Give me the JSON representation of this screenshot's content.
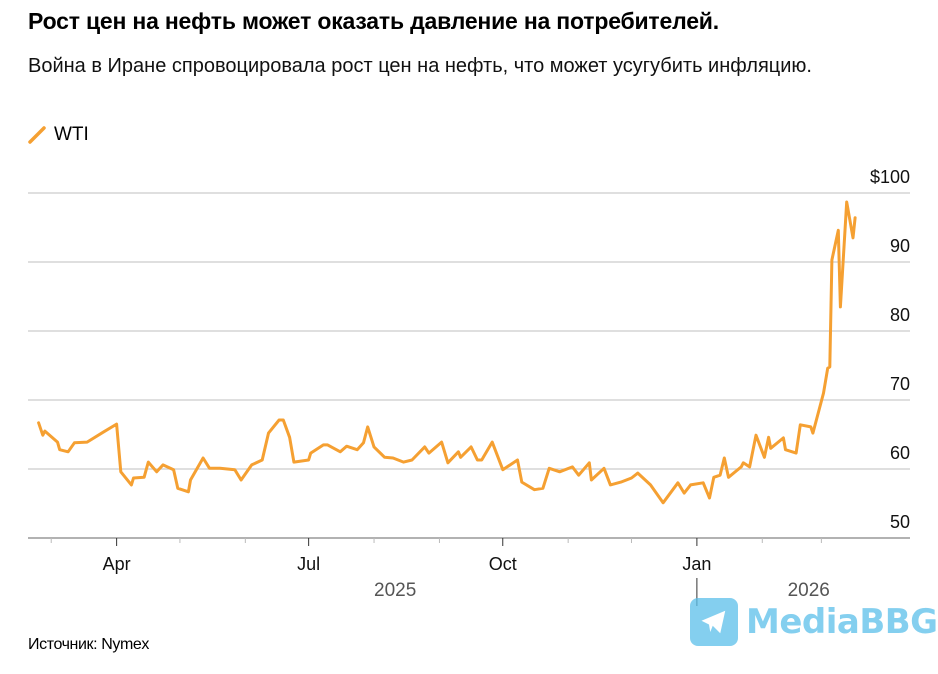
{
  "header": {
    "title": "Рост цен на нефть может оказать давление на потребителей.",
    "subtitle": "Война в Иране спровоцировала рост цен на нефть, что может усугубить инфляцию."
  },
  "source": "Источник: Nymex",
  "watermark": "MediaBBG",
  "colors": {
    "series": "#f5a032",
    "grid": "#cccccc",
    "axis": "#999999"
  },
  "chart_data": {
    "type": "line",
    "title": "Рост цен на нефть может оказать давление на потребителей.",
    "xlabel": "",
    "ylabel": "",
    "x_units": "days since 2025-01-01",
    "xlim": [
      48,
      466
    ],
    "ylim": [
      50,
      100
    ],
    "grid": true,
    "legend": "top-left",
    "y_ticks": [
      {
        "value": 100,
        "label": "$100"
      },
      {
        "value": 90,
        "label": "90"
      },
      {
        "value": 80,
        "label": "80"
      },
      {
        "value": 70,
        "label": "70"
      },
      {
        "value": 60,
        "label": "60"
      },
      {
        "value": 50,
        "label": "50"
      }
    ],
    "x_ticks": [
      {
        "value": 90,
        "label": "Apr"
      },
      {
        "value": 181,
        "label": "Jul"
      },
      {
        "value": 273,
        "label": "Oct"
      },
      {
        "value": 365,
        "label": "Jan"
      }
    ],
    "x_minor_ticks": [
      59,
      120,
      151,
      212,
      243,
      304,
      334,
      396,
      424
    ],
    "year_labels": [
      {
        "value": 222,
        "label": "2025"
      },
      {
        "value": 418,
        "label": "2026"
      }
    ],
    "year_divider": 365,
    "series": [
      {
        "name": "WTI",
        "x": [
          53,
          55,
          56,
          62,
          63,
          67,
          70,
          76,
          84,
          90,
          92,
          97,
          98,
          103,
          105,
          109,
          112,
          117,
          119,
          124,
          125,
          131,
          134,
          139,
          146,
          149,
          154,
          159,
          162,
          167,
          169,
          172,
          174,
          181,
          182,
          188,
          190,
          196,
          199,
          204,
          207,
          209,
          212,
          217,
          221,
          226,
          230,
          236,
          238,
          244,
          247,
          252,
          253,
          258,
          261,
          263,
          268,
          273,
          280,
          282,
          288,
          292,
          295,
          300,
          306,
          309,
          314,
          315,
          321,
          324,
          329,
          334,
          337,
          343,
          349,
          356,
          359,
          362,
          368,
          371,
          373,
          376,
          378,
          380,
          386,
          387,
          390,
          393,
          397,
          399,
          400,
          406,
          407,
          412,
          414,
          419,
          420,
          425,
          427,
          428,
          429,
          432,
          433,
          436,
          439,
          440
        ],
        "values": [
          66.7,
          64.9,
          65.5,
          63.9,
          62.8,
          62.5,
          63.8,
          63.9,
          65.4,
          66.5,
          59.6,
          57.7,
          58.7,
          58.8,
          61,
          59.6,
          60.6,
          59.9,
          57.2,
          56.7,
          58.4,
          61.6,
          60.1,
          60.1,
          59.9,
          58.4,
          60.6,
          61.3,
          65.2,
          67.1,
          67.1,
          64.6,
          61,
          61.3,
          62.3,
          63.5,
          63.5,
          62.5,
          63.3,
          62.8,
          63.8,
          66.1,
          63.2,
          61.7,
          61.6,
          61,
          61.3,
          63.2,
          62.3,
          63.9,
          60.9,
          62.5,
          61.7,
          63.2,
          61.3,
          61.3,
          63.9,
          59.9,
          61.3,
          58.1,
          57,
          57.2,
          60.1,
          59.6,
          60.3,
          59.1,
          60.9,
          58.4,
          60.1,
          57.7,
          58.1,
          58.7,
          59.4,
          57.7,
          55.1,
          58,
          56.5,
          57.7,
          58,
          55.8,
          58.8,
          59.1,
          61.6,
          58.8,
          60.3,
          60.9,
          60.3,
          64.9,
          61.7,
          64.6,
          63,
          64.5,
          62.8,
          62.3,
          66.4,
          66.1,
          65.2,
          71,
          74.6,
          74.8,
          90.3,
          94.6,
          83.5,
          98.7,
          93.5,
          96.4
        ]
      }
    ]
  }
}
